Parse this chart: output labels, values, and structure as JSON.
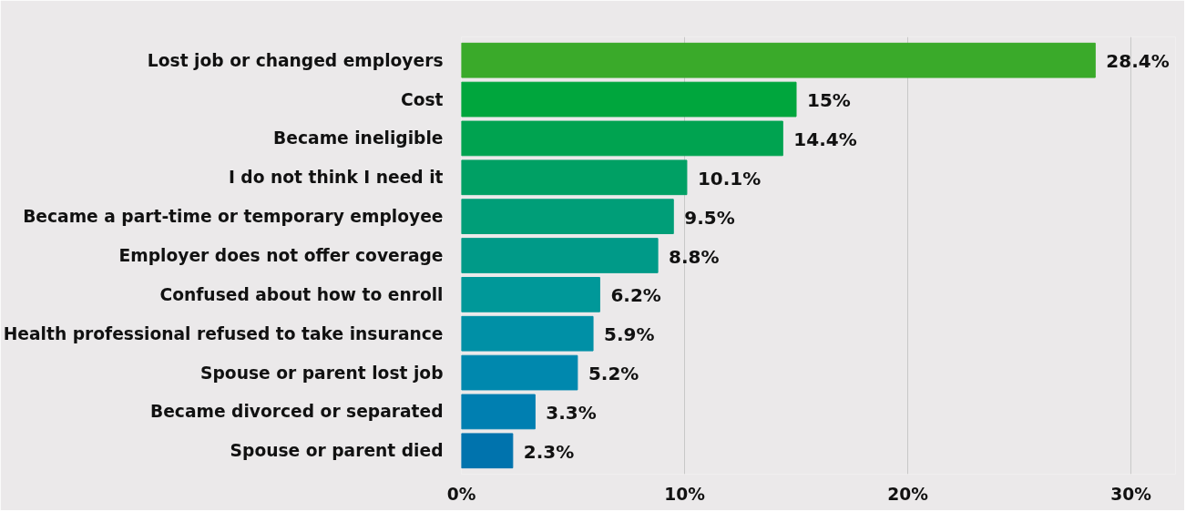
{
  "chart_data": {
    "type": "bar",
    "orientation": "horizontal",
    "categories": [
      "Lost job or changed employers",
      "Cost",
      "Became ineligible",
      "I do not think I need it",
      "Became a part-time or temporary employee",
      "Employer does not offer coverage",
      "Confused about how to enroll",
      "Health professional refused to take insurance",
      "Spouse or parent lost job",
      "Became divorced or separated",
      "Spouse or parent died"
    ],
    "values": [
      28.4,
      15,
      14.4,
      10.1,
      9.5,
      8.8,
      6.2,
      5.9,
      5.2,
      3.3,
      2.3
    ],
    "value_labels": [
      "28.4%",
      "15%",
      "14.4%",
      "10.1%",
      "9.5%",
      "8.8%",
      "6.2%",
      "5.9%",
      "5.2%",
      "3.3%",
      "2.3%"
    ],
    "colors": [
      "#3aaa2a",
      "#00a63d",
      "#00a350",
      "#00a064",
      "#009e78",
      "#009a88",
      "#009899",
      "#0090a6",
      "#0088ae",
      "#007fb1",
      "#0073ad"
    ],
    "xlim": [
      0,
      32
    ],
    "xticks": [
      {
        "value": 0,
        "label": "0%"
      },
      {
        "value": 10,
        "label": "10%"
      },
      {
        "value": 20,
        "label": "20%"
      },
      {
        "value": 30,
        "label": "30%"
      }
    ],
    "grid": "x"
  }
}
